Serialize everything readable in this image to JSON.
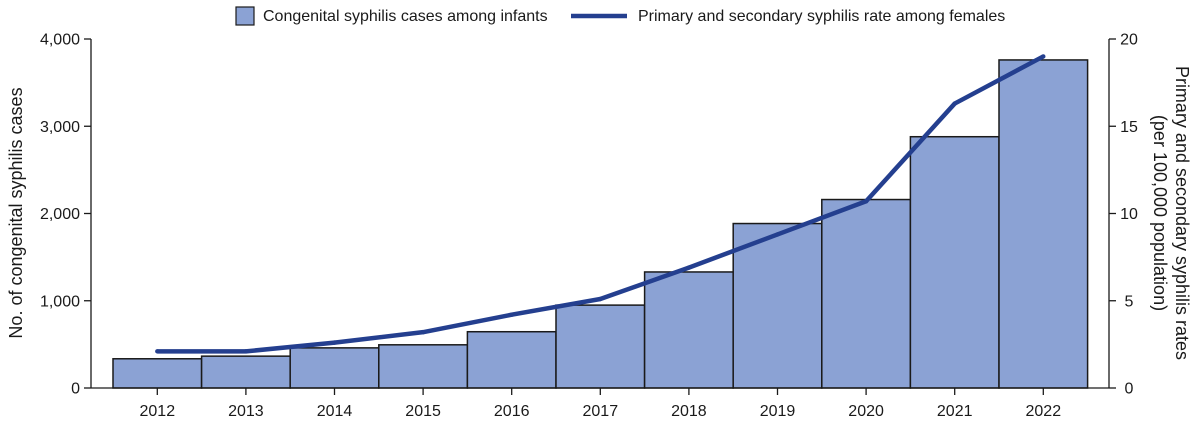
{
  "chart_data": {
    "type": "bar",
    "categories": [
      "2012",
      "2013",
      "2014",
      "2015",
      "2016",
      "2017",
      "2018",
      "2019",
      "2020",
      "2021",
      "2022"
    ],
    "series": [
      {
        "name": "Congenital syphilis cases among infants",
        "kind": "bar",
        "axis": "left",
        "values": [
          335,
          365,
          460,
          495,
          645,
          950,
          1330,
          1885,
          2160,
          2880,
          3760
        ]
      },
      {
        "name": "Primary and secondary syphilis rate among females",
        "kind": "line",
        "axis": "right",
        "values": [
          2.1,
          2.1,
          2.6,
          3.2,
          4.2,
          5.1,
          6.9,
          8.8,
          10.7,
          16.3,
          19.0
        ]
      }
    ],
    "ylabel": "No. of congenital syphilis cases",
    "ylim": [
      0,
      4000
    ],
    "yticks": [
      "0",
      "1,000",
      "2,000",
      "3,000",
      "4,000"
    ],
    "y2label": [
      "Primary and secondary syphilis rates",
      "(per 100,000 population)"
    ],
    "y2lim": [
      0,
      20
    ],
    "y2ticks": [
      "0",
      "5",
      "10",
      "15",
      "20"
    ],
    "grid": false,
    "legend_position": "top",
    "colors": {
      "bar_fill": "#8ba2d4",
      "bar_stroke": "#1a1a1a",
      "line": "#243f8f",
      "axis": "#1a1a1a"
    }
  }
}
